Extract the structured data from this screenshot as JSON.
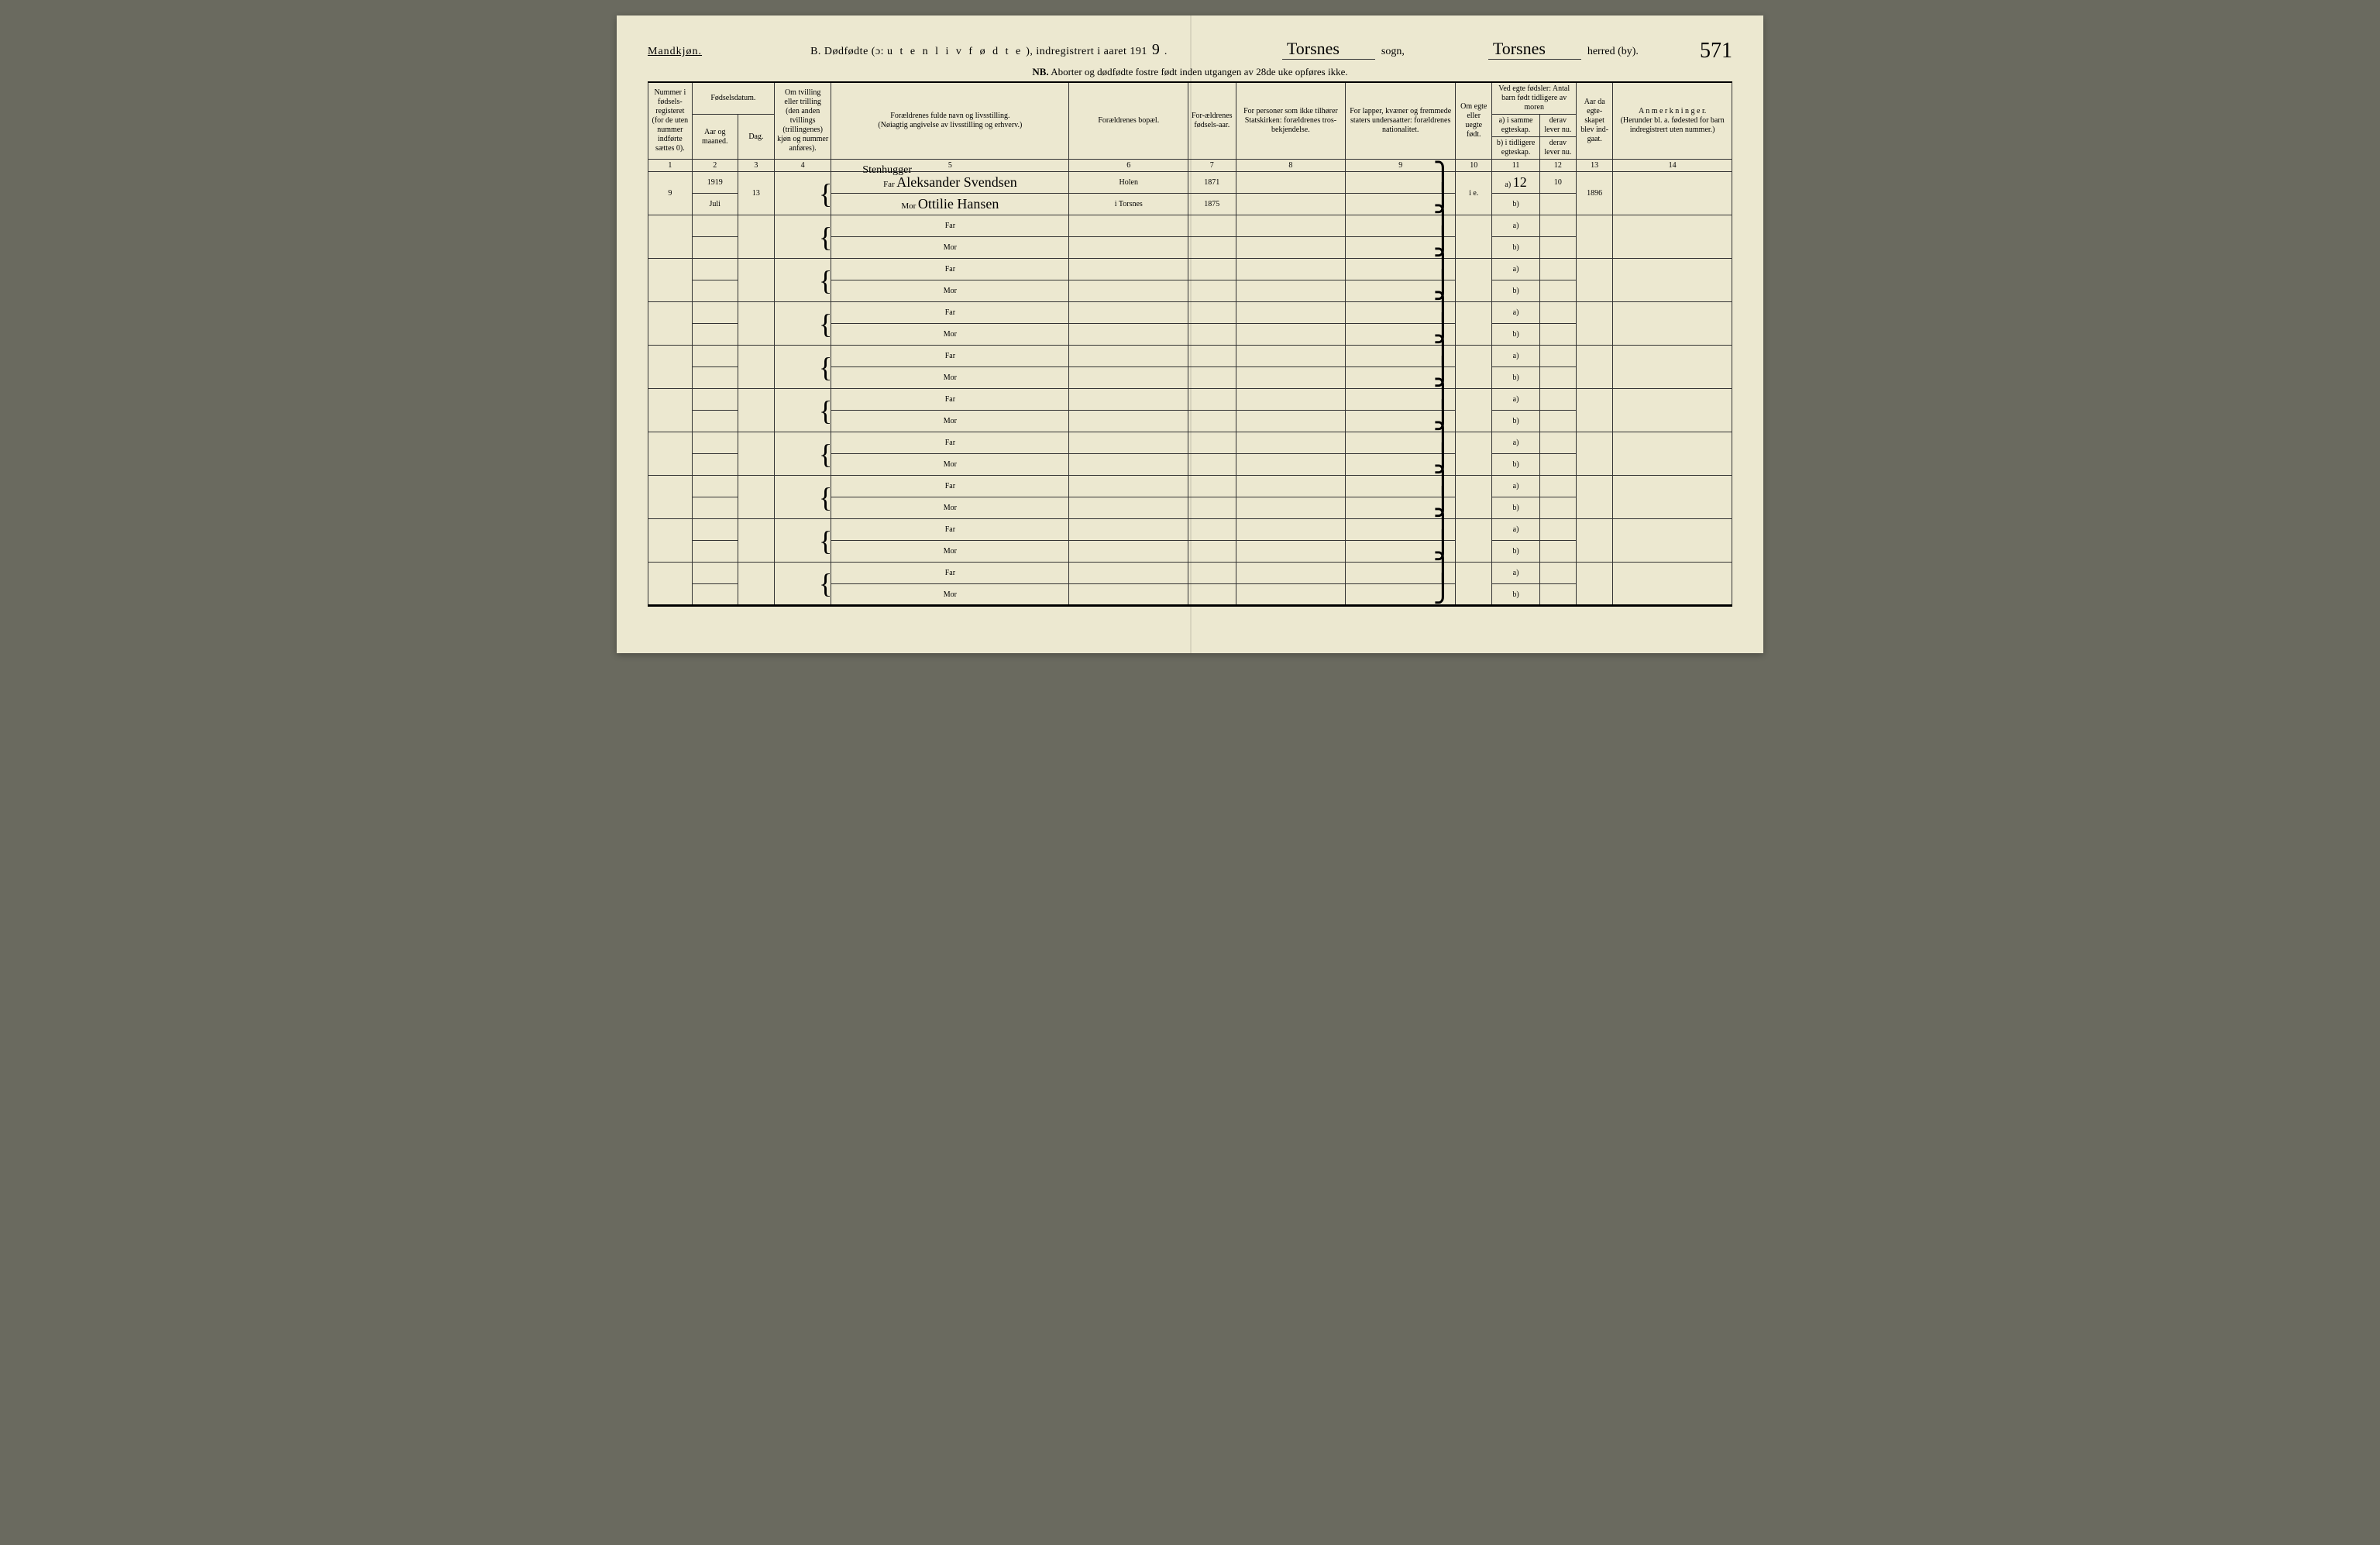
{
  "gender_heading": "Mandkjøn.",
  "title_prefix": "B. Dødfødte (ɔ:",
  "title_spaced": "u t e n  l i v  f ø d t e",
  "title_suffix": "), indregistrert i aaret 191",
  "year_digit": "9",
  "period": ".",
  "sogn_value": "Torsnes",
  "sogn_label": "sogn,",
  "herred_value": "Torsnes",
  "herred_label": "herred (by).",
  "page_number": "571",
  "nb_label": "NB.",
  "nb_text": "Aborter og dødfødte fostre født inden utgangen av 28de uke opføres ikke.",
  "columns": {
    "c1": "Nummer i fødsels-registeret (for de uten nummer indførte sættes 0).",
    "c2_top": "Fødselsdatum.",
    "c2a": "Aar og maaned.",
    "c2b": "Dag.",
    "c4": "Om tvilling eller trilling (den anden tvillings (trillingenes) kjøn og nummer anføres).",
    "c5": "Forældrenes fulde navn og livsstilling.\n(Nøiagtig angivelse av livsstilling og erhverv.)",
    "c6": "Forældrenes bopæl.",
    "c7": "For-ældrenes fødsels-aar.",
    "c8": "For personer som ikke tilhører Statskirken: forældrenes tros-bekjendelse.",
    "c9": "For lapper, kvæner og fremmede staters undersaatter: forældrenes nationalitet.",
    "c10": "Om egte eller uegte født.",
    "c11_top": "Ved egte fødsler: Antal barn født tidligere av moren",
    "c11a": "a) i samme egteskap.",
    "c11b": "b) i tidligere egteskap.",
    "c12a": "derav lever nu.",
    "c12b": "derav lever nu.",
    "c13": "Aar da egte-skapet blev ind-gaat.",
    "c14": "A n m e r k n i n g e r.\n(Herunder bl. a. fødested for barn indregistrert uten nummer.)"
  },
  "colnums": [
    "1",
    "2",
    "3",
    "4",
    "5",
    "6",
    "7",
    "8",
    "9",
    "10",
    "11",
    "12",
    "13",
    "14"
  ],
  "far_label": "Far",
  "mor_label": "Mor",
  "ab_a": "a)",
  "ab_b": "b)",
  "entry": {
    "number": "9",
    "year": "1919",
    "month": "Juli",
    "day": "13",
    "profession": "Stenhugger",
    "father_name": "Aleksander Svendsen",
    "mother_name": "Ottilie Hansen",
    "residence_far": "Holen",
    "residence_mor": "i Torsnes",
    "father_birth": "1871",
    "mother_birth": "1875",
    "egte": "i e.",
    "a_val": "12",
    "a_lever": "10",
    "year_married": "1896"
  },
  "colors": {
    "paper": "#ece8d0",
    "ink": "#222222",
    "line": "#333333"
  }
}
